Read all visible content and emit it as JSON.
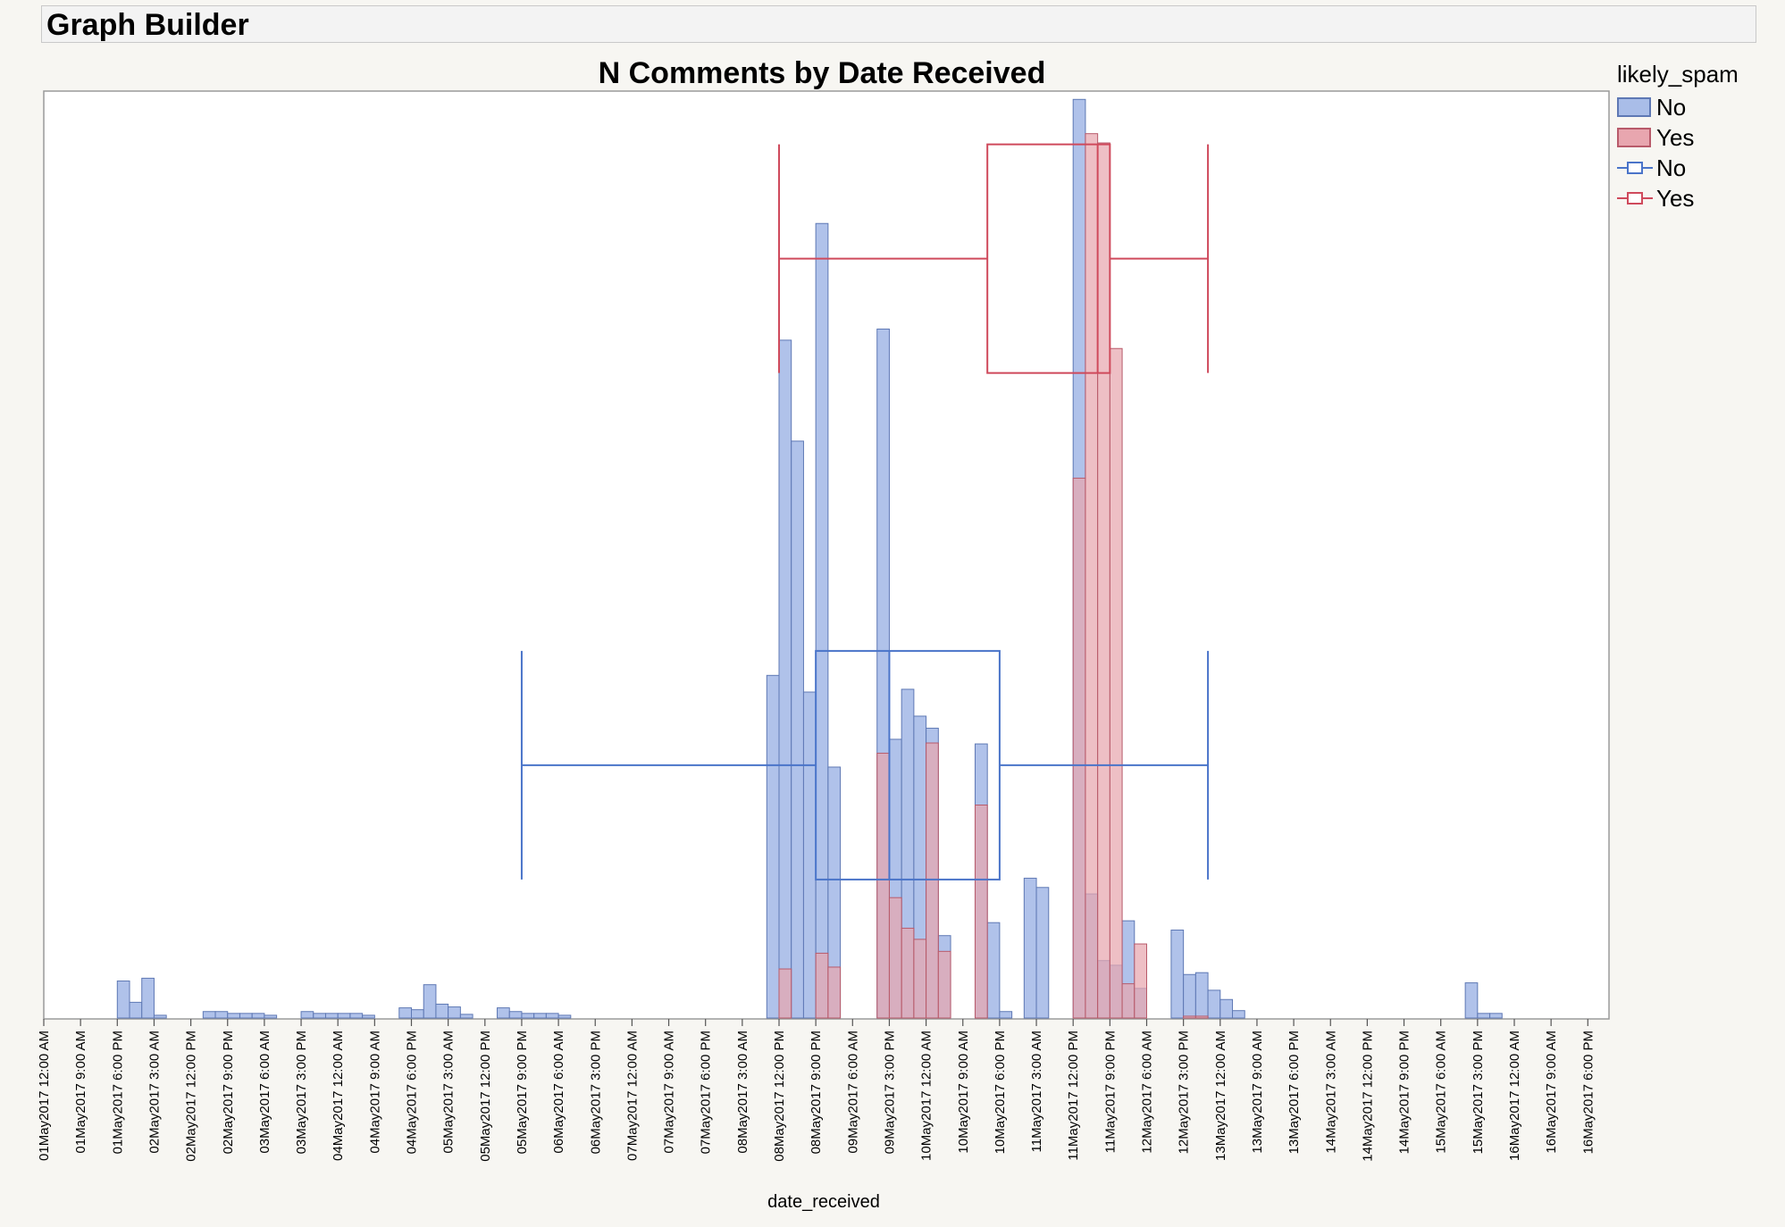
{
  "window": {
    "title": "Graph Builder"
  },
  "chart_data": {
    "type": "bar",
    "title": "N Comments by Date Received",
    "xlabel": "date_received",
    "ylabel": "",
    "legend": {
      "title": "likely_spam",
      "placement": "right",
      "entries": [
        {
          "label": "No",
          "kind": "bar",
          "color": "#a9bde8",
          "stroke": "#5e78b4"
        },
        {
          "label": "Yes",
          "kind": "bar",
          "color": "#e8a6af",
          "stroke": "#b85a6a"
        },
        {
          "label": "No",
          "kind": "box",
          "color": "#4a74c9"
        },
        {
          "label": "Yes",
          "kind": "box",
          "color": "#cf4a5c"
        }
      ]
    },
    "x_ticks": [
      "01May2017 12:00 AM",
      "01May2017 9:00 AM",
      "01May2017 6:00 PM",
      "02May2017 3:00 AM",
      "02May2017 12:00 PM",
      "02May2017 9:00 PM",
      "03May2017 6:00 AM",
      "03May2017 3:00 PM",
      "04May2017 12:00 AM",
      "04May2017 9:00 AM",
      "04May2017 6:00 PM",
      "05May2017 3:00 AM",
      "05May2017 12:00 PM",
      "05May2017 9:00 PM",
      "06May2017 6:00 AM",
      "06May2017 3:00 PM",
      "07May2017 12:00 AM",
      "07May2017 9:00 AM",
      "07May2017 6:00 PM",
      "08May2017 3:00 AM",
      "08May2017 12:00 PM",
      "08May2017 9:00 PM",
      "09May2017 6:00 AM",
      "09May2017 3:00 PM",
      "10May2017 12:00 AM",
      "10May2017 9:00 AM",
      "10May2017 6:00 PM",
      "11May2017 3:00 AM",
      "11May2017 12:00 PM",
      "11May2017 9:00 PM",
      "12May2017 6:00 AM",
      "12May2017 3:00 PM",
      "13May2017 12:00 AM",
      "13May2017 9:00 AM",
      "13May2017 6:00 PM",
      "14May2017 3:00 AM",
      "14May2017 12:00 PM",
      "14May2017 9:00 PM",
      "15May2017 6:00 AM",
      "15May2017 3:00 PM",
      "16May2017 12:00 AM",
      "16May2017 9:00 AM",
      "16May2017 6:00 PM"
    ],
    "bin_hours": 3,
    "y_max": 1000,
    "grid": false,
    "series": [
      {
        "name": "No",
        "color": "#a9bde8",
        "stroke": "#5e78b4",
        "bins": [
          {
            "start": "01May2017 6:00 PM",
            "value": 40
          },
          {
            "start": "01May2017 9:00 PM",
            "value": 17
          },
          {
            "start": "02May2017 12:00 AM",
            "value": 43
          },
          {
            "start": "02May2017 3:00 AM",
            "value": 3
          },
          {
            "start": "02May2017 3:00 PM",
            "value": 7
          },
          {
            "start": "02May2017 6:00 PM",
            "value": 7
          },
          {
            "start": "02May2017 9:00 PM",
            "value": 5
          },
          {
            "start": "03May2017 12:00 AM",
            "value": 5
          },
          {
            "start": "03May2017 3:00 AM",
            "value": 5
          },
          {
            "start": "03May2017 6:00 AM",
            "value": 3
          },
          {
            "start": "03May2017 3:00 PM",
            "value": 7
          },
          {
            "start": "03May2017 6:00 PM",
            "value": 5
          },
          {
            "start": "03May2017 9:00 PM",
            "value": 5
          },
          {
            "start": "04May2017 12:00 AM",
            "value": 5
          },
          {
            "start": "04May2017 3:00 AM",
            "value": 5
          },
          {
            "start": "04May2017 6:00 AM",
            "value": 3
          },
          {
            "start": "04May2017 3:00 PM",
            "value": 11
          },
          {
            "start": "04May2017 6:00 PM",
            "value": 9
          },
          {
            "start": "04May2017 9:00 PM",
            "value": 36
          },
          {
            "start": "05May2017 12:00 AM",
            "value": 15
          },
          {
            "start": "05May2017 3:00 AM",
            "value": 12
          },
          {
            "start": "05May2017 6:00 AM",
            "value": 4
          },
          {
            "start": "05May2017 3:00 PM",
            "value": 11
          },
          {
            "start": "05May2017 6:00 PM",
            "value": 7
          },
          {
            "start": "05May2017 9:00 PM",
            "value": 5
          },
          {
            "start": "06May2017 12:00 AM",
            "value": 5
          },
          {
            "start": "06May2017 3:00 AM",
            "value": 5
          },
          {
            "start": "06May2017 6:00 AM",
            "value": 3
          },
          {
            "start": "08May2017 9:00 AM",
            "value": 370
          },
          {
            "start": "08May2017 12:00 PM",
            "value": 732
          },
          {
            "start": "08May2017 3:00 PM",
            "value": 623
          },
          {
            "start": "08May2017 6:00 PM",
            "value": 352
          },
          {
            "start": "08May2017 9:00 PM",
            "value": 858
          },
          {
            "start": "09May2017 12:00 AM",
            "value": 271
          },
          {
            "start": "09May2017 12:00 PM",
            "value": 744
          },
          {
            "start": "09May2017 3:00 PM",
            "value": 301
          },
          {
            "start": "09May2017 6:00 PM",
            "value": 355
          },
          {
            "start": "09May2017 9:00 PM",
            "value": 326
          },
          {
            "start": "10May2017 12:00 AM",
            "value": 313
          },
          {
            "start": "10May2017 3:00 AM",
            "value": 89
          },
          {
            "start": "10May2017 12:00 PM",
            "value": 296
          },
          {
            "start": "10May2017 3:00 PM",
            "value": 103
          },
          {
            "start": "10May2017 6:00 PM",
            "value": 7
          },
          {
            "start": "11May2017 12:00 AM",
            "value": 151
          },
          {
            "start": "11May2017 3:00 AM",
            "value": 141
          },
          {
            "start": "11May2017 12:00 PM",
            "value": 992
          },
          {
            "start": "11May2017 3:00 PM",
            "value": 134
          },
          {
            "start": "11May2017 6:00 PM",
            "value": 62
          },
          {
            "start": "11May2017 9:00 PM",
            "value": 57
          },
          {
            "start": "12May2017 12:00 AM",
            "value": 105
          },
          {
            "start": "12May2017 3:00 AM",
            "value": 32
          },
          {
            "start": "12May2017 12:00 PM",
            "value": 95
          },
          {
            "start": "12May2017 3:00 PM",
            "value": 47
          },
          {
            "start": "12May2017 6:00 PM",
            "value": 49
          },
          {
            "start": "12May2017 9:00 PM",
            "value": 30
          },
          {
            "start": "13May2017 12:00 AM",
            "value": 20
          },
          {
            "start": "13May2017 3:00 AM",
            "value": 8
          },
          {
            "start": "15May2017 12:00 PM",
            "value": 38
          },
          {
            "start": "15May2017 3:00 PM",
            "value": 5
          },
          {
            "start": "15May2017 6:00 PM",
            "value": 5
          }
        ]
      },
      {
        "name": "Yes",
        "color": "#e8a6af",
        "stroke": "#b85a6a",
        "bins": [
          {
            "start": "08May2017 12:00 PM",
            "value": 53
          },
          {
            "start": "08May2017 9:00 PM",
            "value": 70
          },
          {
            "start": "09May2017 12:00 AM",
            "value": 55
          },
          {
            "start": "09May2017 12:00 PM",
            "value": 286
          },
          {
            "start": "09May2017 3:00 PM",
            "value": 130
          },
          {
            "start": "09May2017 6:00 PM",
            "value": 97
          },
          {
            "start": "09May2017 9:00 PM",
            "value": 85
          },
          {
            "start": "10May2017 12:00 AM",
            "value": 297
          },
          {
            "start": "10May2017 3:00 AM",
            "value": 72
          },
          {
            "start": "10May2017 12:00 PM",
            "value": 230
          },
          {
            "start": "11May2017 12:00 PM",
            "value": 583
          },
          {
            "start": "11May2017 3:00 PM",
            "value": 955
          },
          {
            "start": "11May2017 6:00 PM",
            "value": 945
          },
          {
            "start": "11May2017 9:00 PM",
            "value": 723
          },
          {
            "start": "12May2017 12:00 AM",
            "value": 37
          },
          {
            "start": "12May2017 3:00 AM",
            "value": 80
          },
          {
            "start": "12May2017 3:00 PM",
            "value": 2
          },
          {
            "start": "12May2017 6:00 PM",
            "value": 2
          }
        ]
      }
    ],
    "box_plots": [
      {
        "name": "No",
        "color": "#4a74c9",
        "value_level": 273,
        "whisker_low": "05May2017 9:00 PM",
        "q1": "08May2017 9:00 PM",
        "median": "09May2017 3:00 PM",
        "q3": "10May2017 6:00 PM",
        "whisker_high": "12May2017 9:00 PM"
      },
      {
        "name": "Yes",
        "color": "#cf4a5c",
        "value_level": 820,
        "whisker_low": "08May2017 12:00 PM",
        "q1": "10May2017 3:00 PM",
        "median": "11May2017 6:00 PM",
        "q3": "11May2017 9:00 PM",
        "whisker_high": "12May2017 9:00 PM"
      }
    ]
  }
}
